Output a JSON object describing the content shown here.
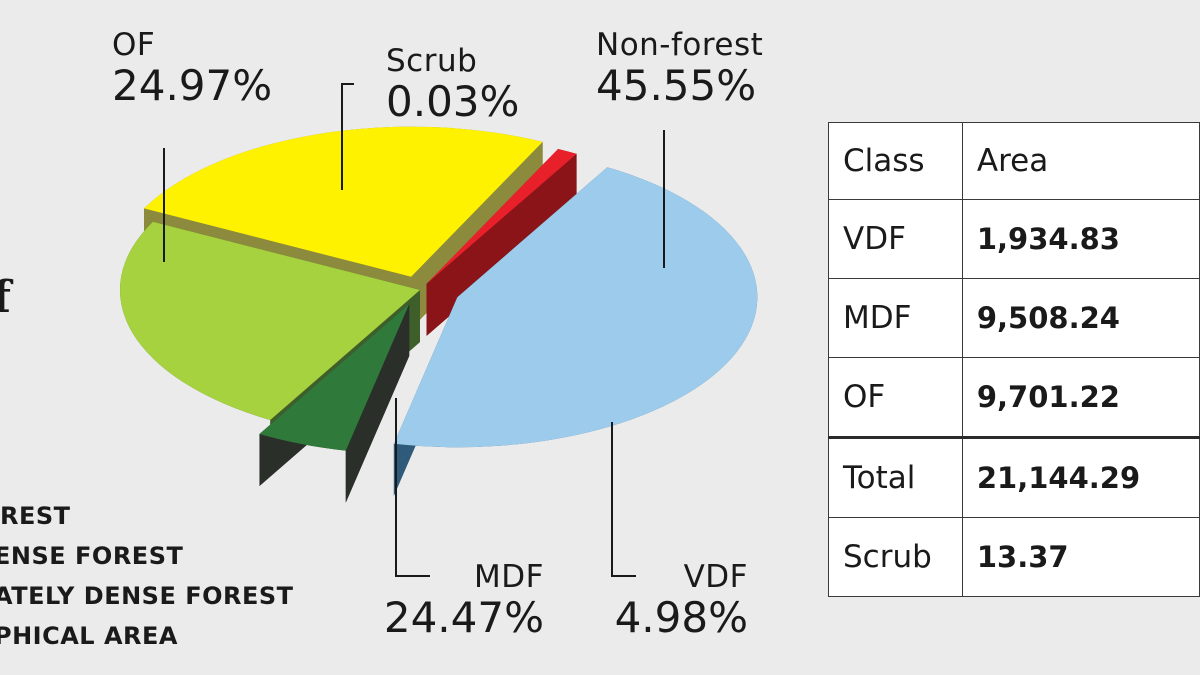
{
  "chart_data": {
    "type": "pie",
    "slices": [
      {
        "label": "Non-forest",
        "value": 45.55,
        "display": "45.55%",
        "color": "#9ccbec",
        "side": "#2f5a7a"
      },
      {
        "label": "VDF",
        "value": 4.98,
        "display": "4.98%",
        "color": "#2f7a3a",
        "side": "#2a2f2a"
      },
      {
        "label": "MDF",
        "value": 24.47,
        "display": "24.47%",
        "color": "#a6d23f",
        "side": "#3f5f2a"
      },
      {
        "label": "OF",
        "value": 24.97,
        "display": "24.97%",
        "color": "#fff200",
        "side": "#8c8a3c"
      },
      {
        "label": "Scrub",
        "value": 0.03,
        "display": "0.03%",
        "color": "#e8202a",
        "side": "#8a1418"
      }
    ]
  },
  "side": {
    "fragment": "f",
    "legend": [
      "REST",
      "ENSE FOREST",
      "ATELY DENSE FOREST",
      "PHICAL AREA"
    ]
  },
  "table": {
    "headers": [
      "Class",
      "Area"
    ],
    "rows": [
      {
        "class": "VDF",
        "area": "1,934.83"
      },
      {
        "class": "MDF",
        "area": "9,508.24"
      },
      {
        "class": "OF",
        "area": "9,701.22"
      },
      {
        "class": "Total",
        "area": "21,144.29"
      },
      {
        "class": "Scrub",
        "area": "13.37"
      }
    ]
  }
}
